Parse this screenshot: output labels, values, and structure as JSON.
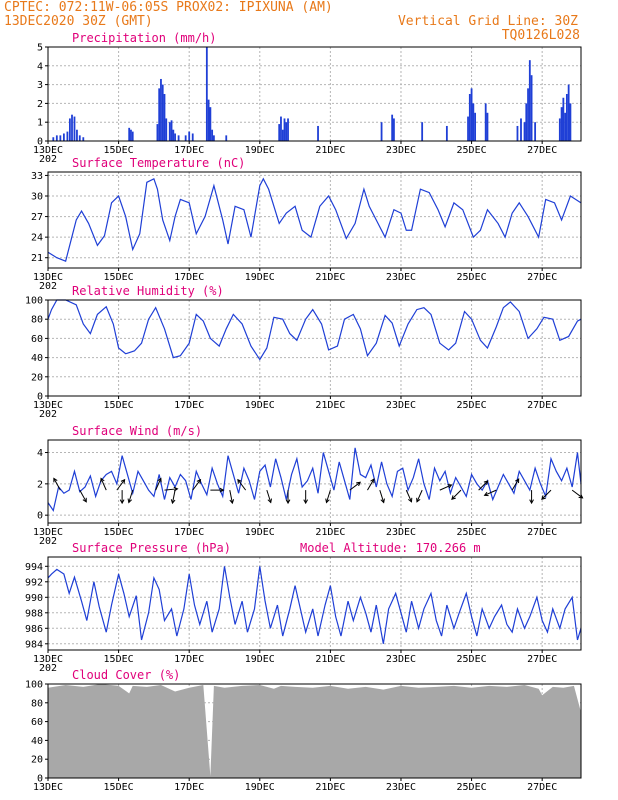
{
  "header": {
    "line1": "CPTEC:   072:11W-06:05S   PROX02: IPIXUNA (AM)",
    "line2_left": "13DEC2020 30Z (GMT)",
    "line2_right": "Vertical Grid Line: 30Z",
    "line3_right": "TQ0126L028"
  },
  "x_axis": {
    "labels": [
      "13DEC",
      "15DEC",
      "17DEC",
      "19DEC",
      "21DEC",
      "23DEC",
      "25DEC",
      "27DEC"
    ],
    "label_days": [
      0,
      2,
      4,
      6,
      8,
      10,
      12,
      14
    ],
    "first_label_suffix": "202",
    "range_days": [
      0,
      15.1
    ]
  },
  "chart_data": [
    {
      "id": "precip",
      "type": "bar",
      "title": "Precipitation (mm/h)",
      "ylim": [
        0,
        5
      ],
      "yticks": [
        0,
        1,
        2,
        3,
        4,
        5
      ],
      "color": "#1f3fd6",
      "x_day": [
        0.15,
        0.25,
        0.35,
        0.45,
        0.55,
        0.62,
        0.68,
        0.75,
        0.82,
        0.9,
        1.0,
        2.3,
        2.35,
        2.4,
        3.1,
        3.15,
        3.2,
        3.25,
        3.3,
        3.35,
        3.45,
        3.5,
        3.55,
        3.6,
        3.7,
        3.9,
        4.0,
        4.1,
        4.5,
        4.55,
        4.6,
        4.65,
        4.7,
        5.05,
        6.55,
        6.6,
        6.65,
        6.7,
        6.75,
        6.8,
        7.65,
        9.45,
        9.75,
        9.8,
        10.6,
        11.3,
        11.9,
        11.95,
        12.0,
        12.05,
        12.1,
        12.4,
        12.45,
        13.3,
        13.4,
        13.5,
        13.55,
        13.6,
        13.65,
        13.7,
        13.8,
        14.5,
        14.55,
        14.6,
        14.65,
        14.7,
        14.75,
        14.8
      ],
      "values": [
        0.2,
        0.3,
        0.3,
        0.4,
        0.5,
        1.2,
        1.4,
        1.3,
        0.6,
        0.3,
        0.2,
        0.7,
        0.6,
        0.5,
        0.9,
        2.8,
        3.3,
        3.0,
        2.5,
        1.2,
        1.0,
        1.1,
        0.6,
        0.4,
        0.3,
        0.3,
        0.5,
        0.4,
        5.0,
        2.2,
        1.8,
        0.6,
        0.3,
        0.3,
        0.9,
        1.3,
        0.6,
        1.2,
        1.0,
        1.2,
        0.8,
        1.0,
        1.4,
        1.2,
        1.0,
        0.8,
        1.3,
        2.5,
        2.8,
        2.0,
        1.5,
        2.0,
        1.5,
        0.8,
        1.2,
        1.0,
        2.0,
        2.8,
        4.3,
        3.5,
        1.0,
        1.2,
        1.8,
        2.3,
        1.5,
        2.5,
        3.0,
        2.0
      ]
    },
    {
      "id": "temp",
      "type": "line",
      "title": "Surface Temperature (nC)",
      "ylim": [
        19.5,
        33.5
      ],
      "yticks": [
        21,
        24,
        27,
        30,
        33
      ],
      "color": "#1f3fd6",
      "x_day": [
        0.0,
        0.25,
        0.5,
        0.65,
        0.8,
        0.95,
        1.15,
        1.4,
        1.6,
        1.8,
        2.0,
        2.2,
        2.4,
        2.6,
        2.8,
        3.0,
        3.1,
        3.25,
        3.45,
        3.6,
        3.75,
        4.0,
        4.2,
        4.45,
        4.7,
        4.95,
        5.1,
        5.3,
        5.55,
        5.75,
        6.0,
        6.1,
        6.25,
        6.55,
        6.75,
        7.0,
        7.2,
        7.45,
        7.7,
        7.95,
        8.15,
        8.45,
        8.7,
        8.95,
        9.1,
        9.3,
        9.55,
        9.8,
        10.0,
        10.15,
        10.3,
        10.55,
        10.8,
        11.05,
        11.25,
        11.5,
        11.75,
        12.05,
        12.25,
        12.45,
        12.75,
        12.95,
        13.15,
        13.35,
        13.6,
        13.9,
        14.1,
        14.35,
        14.55,
        14.8,
        15.1
      ],
      "values": [
        21.8,
        21.0,
        20.5,
        23.5,
        26.5,
        27.8,
        26.0,
        22.8,
        24.2,
        29.0,
        30.0,
        27.0,
        22.2,
        24.5,
        32.0,
        32.5,
        31.0,
        26.5,
        23.5,
        27.0,
        29.5,
        29.0,
        24.5,
        27.0,
        31.5,
        26.5,
        23.0,
        28.5,
        28.0,
        24.0,
        31.5,
        32.5,
        31.0,
        26.0,
        27.5,
        28.5,
        25.0,
        24.0,
        28.5,
        30.0,
        28.0,
        23.8,
        26.0,
        31.0,
        28.5,
        26.5,
        24.0,
        28.0,
        27.5,
        25.0,
        25.0,
        31.0,
        30.5,
        28.0,
        25.5,
        29.0,
        28.0,
        24.0,
        25.0,
        28.0,
        26.0,
        24.0,
        27.5,
        29.0,
        27.0,
        24.0,
        29.5,
        29.0,
        26.5,
        30.0,
        29.0
      ]
    },
    {
      "id": "rh",
      "type": "line",
      "title": "Relative Humidity (%)",
      "ylim": [
        0,
        100
      ],
      "yticks": [
        0,
        20,
        40,
        60,
        80,
        100
      ],
      "color": "#1f3fd6",
      "x_day": [
        0.0,
        0.1,
        0.25,
        0.5,
        0.8,
        1.0,
        1.2,
        1.4,
        1.65,
        1.85,
        2.0,
        2.2,
        2.45,
        2.65,
        2.85,
        3.05,
        3.3,
        3.55,
        3.75,
        4.0,
        4.2,
        4.4,
        4.6,
        4.85,
        5.05,
        5.25,
        5.5,
        5.75,
        6.0,
        6.2,
        6.4,
        6.65,
        6.85,
        7.05,
        7.3,
        7.5,
        7.75,
        7.95,
        8.2,
        8.4,
        8.65,
        8.85,
        9.05,
        9.3,
        9.55,
        9.75,
        9.95,
        10.2,
        10.45,
        10.65,
        10.85,
        11.1,
        11.35,
        11.55,
        11.8,
        12.0,
        12.25,
        12.45,
        12.7,
        12.9,
        13.1,
        13.35,
        13.6,
        13.85,
        14.05,
        14.3,
        14.5,
        14.75,
        15.0,
        15.1
      ],
      "values": [
        80,
        90,
        100,
        100,
        95,
        75,
        65,
        85,
        93,
        75,
        50,
        44,
        47,
        55,
        80,
        92,
        70,
        40,
        42,
        55,
        85,
        78,
        60,
        52,
        70,
        85,
        75,
        52,
        38,
        50,
        82,
        80,
        65,
        58,
        80,
        90,
        75,
        48,
        52,
        80,
        85,
        70,
        42,
        55,
        84,
        76,
        52,
        75,
        90,
        92,
        85,
        55,
        48,
        55,
        88,
        80,
        58,
        50,
        72,
        92,
        98,
        88,
        60,
        70,
        82,
        80,
        58,
        62,
        78,
        80
      ]
    },
    {
      "id": "wind",
      "type": "line",
      "title": "Surface Wind (m/s)",
      "ylim": [
        -0.5,
        4.8
      ],
      "yticks": [
        0,
        2,
        4
      ],
      "color": "#1f3fd6",
      "x_day": [
        0.0,
        0.15,
        0.3,
        0.45,
        0.6,
        0.75,
        0.9,
        1.05,
        1.2,
        1.35,
        1.5,
        1.65,
        1.8,
        1.95,
        2.1,
        2.25,
        2.4,
        2.55,
        2.7,
        2.85,
        3.0,
        3.15,
        3.3,
        3.45,
        3.6,
        3.75,
        3.9,
        4.05,
        4.2,
        4.35,
        4.5,
        4.65,
        4.8,
        4.95,
        5.1,
        5.25,
        5.4,
        5.55,
        5.7,
        5.85,
        6.0,
        6.15,
        6.3,
        6.45,
        6.6,
        6.75,
        6.9,
        7.05,
        7.2,
        7.35,
        7.5,
        7.65,
        7.8,
        7.95,
        8.1,
        8.25,
        8.4,
        8.55,
        8.7,
        8.85,
        9.0,
        9.15,
        9.3,
        9.45,
        9.6,
        9.75,
        9.9,
        10.05,
        10.2,
        10.35,
        10.5,
        10.65,
        10.8,
        10.95,
        11.1,
        11.25,
        11.4,
        11.55,
        11.7,
        11.85,
        12.0,
        12.15,
        12.3,
        12.45,
        12.6,
        12.75,
        12.9,
        13.05,
        13.2,
        13.35,
        13.5,
        13.65,
        13.8,
        13.95,
        14.1,
        14.25,
        14.4,
        14.55,
        14.7,
        14.85,
        15.0,
        15.1
      ],
      "values": [
        0.8,
        0.3,
        1.8,
        1.4,
        1.6,
        2.8,
        1.5,
        1.8,
        2.5,
        1.2,
        2.2,
        2.6,
        2.8,
        2.0,
        3.8,
        2.6,
        1.4,
        2.8,
        2.2,
        1.6,
        1.2,
        2.6,
        1.0,
        2.4,
        1.8,
        2.6,
        2.2,
        1.0,
        2.8,
        2.0,
        1.3,
        3.0,
        2.0,
        1.2,
        3.8,
        2.6,
        1.4,
        3.0,
        2.2,
        1.0,
        2.8,
        3.2,
        1.8,
        3.6,
        2.4,
        1.0,
        2.6,
        3.6,
        1.8,
        2.2,
        3.0,
        1.4,
        4.0,
        2.8,
        1.6,
        3.4,
        2.2,
        1.0,
        4.3,
        2.6,
        2.4,
        3.2,
        1.8,
        3.4,
        2.0,
        1.2,
        2.8,
        3.0,
        1.6,
        2.4,
        3.6,
        2.0,
        1.0,
        3.0,
        2.2,
        2.8,
        1.4,
        2.4,
        1.8,
        1.2,
        2.6,
        2.0,
        1.6,
        2.2,
        1.0,
        1.8,
        2.6,
        2.0,
        1.4,
        2.8,
        2.2,
        1.6,
        3.0,
        2.0,
        1.2,
        3.6,
        2.8,
        2.2,
        3.0,
        1.8,
        4.0,
        2.0
      ],
      "arrows": [
        {
          "day": 0.35,
          "u": -0.5,
          "v": 0.9
        },
        {
          "day": 0.9,
          "u": 0.5,
          "v": -0.9
        },
        {
          "day": 1.65,
          "u": -0.4,
          "v": 0.9
        },
        {
          "day": 1.95,
          "u": 0.6,
          "v": 0.8
        },
        {
          "day": 2.1,
          "u": 0.0,
          "v": -1.0
        },
        {
          "day": 2.4,
          "u": -0.3,
          "v": -0.95
        },
        {
          "day": 3.05,
          "u": 0.4,
          "v": 0.9
        },
        {
          "day": 3.3,
          "u": 1.0,
          "v": 0.1
        },
        {
          "day": 3.6,
          "u": -0.2,
          "v": -1.0
        },
        {
          "day": 4.1,
          "u": 0.6,
          "v": 0.8
        },
        {
          "day": 4.6,
          "u": 1.0,
          "v": 0.0
        },
        {
          "day": 5.15,
          "u": 0.2,
          "v": -1.0
        },
        {
          "day": 5.6,
          "u": -0.6,
          "v": 0.8
        },
        {
          "day": 6.2,
          "u": 0.3,
          "v": -0.95
        },
        {
          "day": 6.8,
          "u": 0.0,
          "v": -1.0
        },
        {
          "day": 7.3,
          "u": 0.0,
          "v": -1.0
        },
        {
          "day": 8.0,
          "u": -0.3,
          "v": -0.95
        },
        {
          "day": 8.55,
          "u": 0.8,
          "v": 0.6
        },
        {
          "day": 9.05,
          "u": 0.5,
          "v": 0.85
        },
        {
          "day": 9.4,
          "u": 0.3,
          "v": -0.95
        },
        {
          "day": 10.15,
          "u": 0.4,
          "v": -0.9
        },
        {
          "day": 10.6,
          "u": -0.4,
          "v": -0.9
        },
        {
          "day": 11.1,
          "u": 0.9,
          "v": 0.4
        },
        {
          "day": 11.7,
          "u": -0.7,
          "v": -0.7
        },
        {
          "day": 12.2,
          "u": 0.7,
          "v": 0.7
        },
        {
          "day": 12.7,
          "u": -0.9,
          "v": -0.4
        },
        {
          "day": 13.15,
          "u": 0.5,
          "v": 0.85
        },
        {
          "day": 13.7,
          "u": 0.0,
          "v": -1.0
        },
        {
          "day": 14.25,
          "u": -0.7,
          "v": -0.7
        },
        {
          "day": 14.85,
          "u": 0.8,
          "v": -0.6
        }
      ]
    },
    {
      "id": "pres",
      "type": "line",
      "title": "Surface Pressure (hPa)",
      "annotation": "Model Altitude: 170.266  m",
      "ylim": [
        983.2,
        995.2
      ],
      "yticks": [
        984,
        986,
        988,
        990,
        992,
        994
      ],
      "color": "#1f3fd6",
      "x_day": [
        0.0,
        0.1,
        0.25,
        0.45,
        0.6,
        0.75,
        0.95,
        1.1,
        1.3,
        1.45,
        1.65,
        1.8,
        2.0,
        2.15,
        2.3,
        2.5,
        2.65,
        2.85,
        3.0,
        3.15,
        3.3,
        3.5,
        3.65,
        3.85,
        4.0,
        4.15,
        4.3,
        4.5,
        4.65,
        4.85,
        5.0,
        5.15,
        5.3,
        5.5,
        5.65,
        5.85,
        6.0,
        6.15,
        6.3,
        6.5,
        6.65,
        6.85,
        7.0,
        7.15,
        7.3,
        7.5,
        7.65,
        7.85,
        8.0,
        8.15,
        8.3,
        8.5,
        8.65,
        8.85,
        9.0,
        9.15,
        9.3,
        9.5,
        9.65,
        9.85,
        10.0,
        10.15,
        10.3,
        10.5,
        10.65,
        10.85,
        11.0,
        11.15,
        11.3,
        11.5,
        11.65,
        11.85,
        12.0,
        12.15,
        12.3,
        12.5,
        12.65,
        12.85,
        13.0,
        13.15,
        13.3,
        13.5,
        13.65,
        13.85,
        14.0,
        14.15,
        14.3,
        14.5,
        14.65,
        14.85,
        15.0,
        15.1
      ],
      "values": [
        992.5,
        993.0,
        993.6,
        993.0,
        990.5,
        992.6,
        989.5,
        987.0,
        992.0,
        988.8,
        985.5,
        989.0,
        993.0,
        990.5,
        987.5,
        990.2,
        984.5,
        988.0,
        992.5,
        991.0,
        987.0,
        988.5,
        985.0,
        988.5,
        993.0,
        989.0,
        986.5,
        989.5,
        985.5,
        988.5,
        994.0,
        990.0,
        986.5,
        989.5,
        985.5,
        988.5,
        994.0,
        989.5,
        986.0,
        989.0,
        985.0,
        988.5,
        991.5,
        988.5,
        985.5,
        988.5,
        985.0,
        989.0,
        991.5,
        987.5,
        985.0,
        989.5,
        987.0,
        990.0,
        988.0,
        985.5,
        989.0,
        984.0,
        988.5,
        990.5,
        988.0,
        985.5,
        989.5,
        986.0,
        988.5,
        990.5,
        987.0,
        985.0,
        989.0,
        986.0,
        988.0,
        990.5,
        987.5,
        985.0,
        988.5,
        986.0,
        987.5,
        989.0,
        986.5,
        985.5,
        988.5,
        986.0,
        987.5,
        990.0,
        987.0,
        985.5,
        988.5,
        986.0,
        988.5,
        990.0,
        984.5,
        986.0
      ]
    },
    {
      "id": "cloud",
      "type": "area",
      "title": "Cloud Cover (%)",
      "ylim": [
        0,
        100
      ],
      "yticks": [
        0,
        20,
        40,
        60,
        80,
        100
      ],
      "color": "#a8a8a8",
      "x_day": [
        0.0,
        0.5,
        1.0,
        1.5,
        2.0,
        2.3,
        2.4,
        2.8,
        3.2,
        3.6,
        4.0,
        4.4,
        4.6,
        4.7,
        5.0,
        5.5,
        6.0,
        6.4,
        6.6,
        7.0,
        7.5,
        8.0,
        8.5,
        9.0,
        9.5,
        10.0,
        10.5,
        11.0,
        11.5,
        12.0,
        12.5,
        13.0,
        13.5,
        13.9,
        14.0,
        14.3,
        14.6,
        14.9,
        15.1
      ],
      "values": [
        96,
        99,
        97,
        100,
        98,
        90,
        98,
        97,
        99,
        92,
        96,
        99,
        2,
        98,
        96,
        98,
        99,
        95,
        98,
        97,
        96,
        98,
        95,
        97,
        94,
        98,
        96,
        97,
        98,
        96,
        98,
        97,
        99,
        95,
        88,
        97,
        96,
        98,
        70
      ]
    }
  ]
}
